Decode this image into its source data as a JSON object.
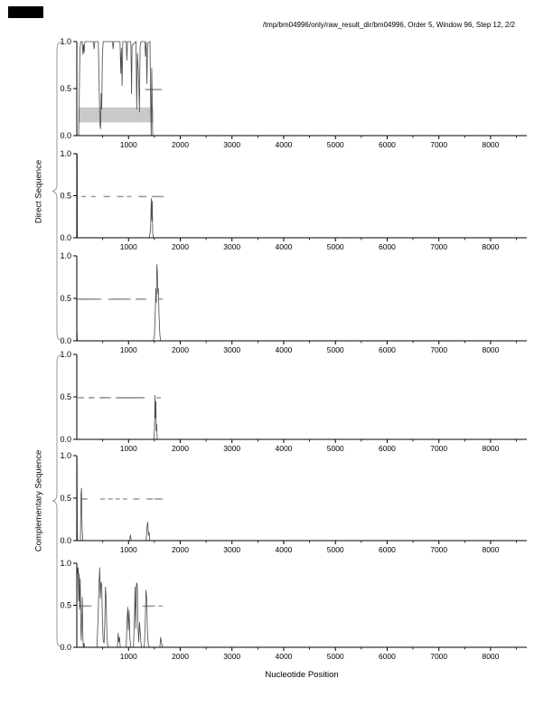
{
  "title": "/tmp/bm04996/only/raw_result_dir/bm04996, Order 5, Window 96, Step 12, 2/2",
  "x_axis_label": "Nucleotide Position",
  "group_labels": {
    "direct": "Direct Sequence",
    "complementary": "Complementary Sequence"
  },
  "colors": {
    "background": "#ffffff",
    "corner_mark": "#000000",
    "axis": "#000000",
    "curve": "#4a4a4a",
    "dash_marks": "#979797",
    "shaded_box": "#c9c9c9",
    "brace": "#9a9a9a",
    "tick_text": "#000000"
  },
  "chart_data": {
    "type": "line",
    "title": "/tmp/bm04996/only/raw_result_dir/bm04996, Order 5, Window 96, Step 12, 2/2",
    "xlabel": "Nucleotide Position",
    "x_domain": [
      0,
      8700
    ],
    "ylim": [
      0.0,
      1.0
    ],
    "grid": false,
    "x_ticks_major": [
      1000,
      2000,
      3000,
      4000,
      5000,
      6000,
      7000,
      8000
    ],
    "x_tick_labels": [
      "1000",
      "2000",
      "3000",
      "4000",
      "5000",
      "6000",
      "7000",
      "8000"
    ],
    "x_ticks_minor": [
      500,
      1500,
      2500,
      3500,
      4500,
      5500,
      6500,
      7500,
      8500
    ],
    "y_ticks": [
      {
        "v": 1.0,
        "label": "1.0"
      },
      {
        "v": 0.5,
        "label": "0.5"
      },
      {
        "v": 0.0,
        "label": "0.0"
      }
    ],
    "groups": [
      {
        "label": "Direct Sequence",
        "panels": [
          0,
          1,
          2
        ]
      },
      {
        "label": "Complementary Sequence",
        "panels": [
          3,
          4,
          5
        ]
      }
    ],
    "panels": [
      {
        "name": "direct-frame-1",
        "shaded_region": {
          "x0": 30,
          "x1": 1480,
          "y0": 0.14,
          "y1": 0.3
        },
        "marks_y": 0.49,
        "marks_x": [
          1365,
          1405,
          1450,
          1500,
          1555,
          1605
        ],
        "curve": [
          [
            0,
            0
          ],
          [
            35,
            0
          ],
          [
            45,
            0.3
          ],
          [
            60,
            0.9
          ],
          [
            75,
            1
          ],
          [
            105,
            1
          ],
          [
            118,
            0.86
          ],
          [
            130,
            0.97
          ],
          [
            142,
            0.88
          ],
          [
            155,
            1
          ],
          [
            320,
            1
          ],
          [
            335,
            0.92
          ],
          [
            350,
            1
          ],
          [
            415,
            1
          ],
          [
            430,
            0.6
          ],
          [
            445,
            0.12
          ],
          [
            460,
            0.07
          ],
          [
            472,
            0.45
          ],
          [
            482,
            0.28
          ],
          [
            495,
            0.85
          ],
          [
            510,
            1
          ],
          [
            690,
            1
          ],
          [
            702,
            0.92
          ],
          [
            715,
            1
          ],
          [
            835,
            1
          ],
          [
            850,
            0.66
          ],
          [
            862,
            0.93
          ],
          [
            875,
            0.53
          ],
          [
            890,
            1
          ],
          [
            955,
            1
          ],
          [
            968,
            0.8
          ],
          [
            980,
            1
          ],
          [
            1045,
            1
          ],
          [
            1058,
            0.44
          ],
          [
            1070,
            0.96
          ],
          [
            1145,
            1
          ],
          [
            1158,
            0.28
          ],
          [
            1172,
            0.88
          ],
          [
            1195,
            0.62
          ],
          [
            1210,
            0.25
          ],
          [
            1225,
            0.95
          ],
          [
            1240,
            1
          ],
          [
            1315,
            1
          ],
          [
            1328,
            0.84
          ],
          [
            1342,
            1
          ],
          [
            1355,
            0.55
          ],
          [
            1370,
            0.98
          ],
          [
            1415,
            1
          ],
          [
            1428,
            0.35
          ],
          [
            1438,
            0
          ],
          [
            1448,
            0.72
          ],
          [
            1458,
            0.35
          ],
          [
            1468,
            0
          ],
          [
            8700,
            0
          ]
        ]
      },
      {
        "name": "direct-frame-2",
        "marks_y": 0.49,
        "marks_x": [
          130,
          320,
          560,
          600,
          820,
          860,
          1010,
          1230,
          1270,
          1310,
          1490,
          1540,
          1590,
          1640
        ],
        "curve": [
          [
            0,
            0
          ],
          [
            3,
            1
          ],
          [
            7,
            1
          ],
          [
            10,
            0
          ],
          [
            1400,
            0
          ],
          [
            1425,
            0.08
          ],
          [
            1440,
            0.47
          ],
          [
            1450,
            0.2
          ],
          [
            1458,
            0.44
          ],
          [
            1468,
            0.06
          ],
          [
            1480,
            0
          ],
          [
            8700,
            0
          ]
        ]
      },
      {
        "name": "direct-frame-3",
        "marks_y": 0.49,
        "marks_x": [
          30,
          60,
          90,
          120,
          150,
          180,
          220,
          260,
          300,
          340,
          380,
          430,
          650,
          690,
          730,
          770,
          810,
          850,
          900,
          950,
          1000,
          1180,
          1220,
          1260,
          1300,
          1620
        ],
        "curve": [
          [
            0,
            0
          ],
          [
            4,
            0.12
          ],
          [
            8,
            0
          ],
          [
            1480,
            0
          ],
          [
            1500,
            0.06
          ],
          [
            1515,
            0.3
          ],
          [
            1528,
            0.62
          ],
          [
            1538,
            0.45
          ],
          [
            1548,
            0.9
          ],
          [
            1558,
            0.8
          ],
          [
            1568,
            0.55
          ],
          [
            1578,
            0.62
          ],
          [
            1590,
            0.3
          ],
          [
            1605,
            0.08
          ],
          [
            1620,
            0
          ],
          [
            8700,
            0
          ]
        ]
      },
      {
        "name": "complementary-frame-1",
        "marks_y": 0.49,
        "marks_x": [
          60,
          100,
          270,
          300,
          480,
          510,
          540,
          570,
          620,
          790,
          820,
          850,
          880,
          910,
          940,
          970,
          1000,
          1030,
          1060,
          1090,
          1120,
          1150,
          1180,
          1210,
          1240,
          1270,
          1580
        ],
        "curve": [
          [
            0,
            0
          ],
          [
            1490,
            0
          ],
          [
            1502,
            0.12
          ],
          [
            1512,
            0.52
          ],
          [
            1520,
            0.25
          ],
          [
            1528,
            0.45
          ],
          [
            1536,
            0.1
          ],
          [
            1545,
            0.18
          ],
          [
            1555,
            0
          ],
          [
            8700,
            0
          ]
        ]
      },
      {
        "name": "complementary-frame-2",
        "marks_y": 0.49,
        "marks_x": [
          120,
          160,
          500,
          650,
          790,
          930,
          1130,
          1170,
          1390,
          1430,
          1540,
          1580,
          1620
        ],
        "curve": [
          [
            0,
            0
          ],
          [
            4,
            1
          ],
          [
            8,
            0.1
          ],
          [
            12,
            0
          ],
          [
            70,
            0
          ],
          [
            82,
            0.55
          ],
          [
            90,
            0.62
          ],
          [
            98,
            0.3
          ],
          [
            105,
            0.12
          ],
          [
            115,
            0
          ],
          [
            1020,
            0
          ],
          [
            1038,
            0.07
          ],
          [
            1052,
            0
          ],
          [
            1340,
            0
          ],
          [
            1358,
            0.16
          ],
          [
            1372,
            0.22
          ],
          [
            1385,
            0.06
          ],
          [
            1398,
            0.1
          ],
          [
            1412,
            0
          ],
          [
            8700,
            0
          ]
        ]
      },
      {
        "name": "complementary-frame-3",
        "marks_y": 0.49,
        "marks_x": [
          80,
          120,
          160,
          200,
          240,
          1310,
          1350,
          1390,
          1430,
          1470,
          1620
        ],
        "curve": [
          [
            0,
            0.55
          ],
          [
            6,
            0.95
          ],
          [
            16,
            0.88
          ],
          [
            26,
            0.95
          ],
          [
            36,
            0.55
          ],
          [
            46,
            0.88
          ],
          [
            56,
            0.45
          ],
          [
            66,
            0.82
          ],
          [
            76,
            0.28
          ],
          [
            86,
            0.08
          ],
          [
            96,
            0.32
          ],
          [
            106,
            0.6
          ],
          [
            116,
            0.18
          ],
          [
            126,
            0
          ],
          [
            140,
            0.05
          ],
          [
            155,
            0
          ],
          [
            390,
            0
          ],
          [
            410,
            0.35
          ],
          [
            428,
            0.72
          ],
          [
            442,
            0.95
          ],
          [
            456,
            0.58
          ],
          [
            468,
            0.78
          ],
          [
            482,
            0.74
          ],
          [
            496,
            0.3
          ],
          [
            510,
            0.08
          ],
          [
            528,
            0.05
          ],
          [
            542,
            0.3
          ],
          [
            554,
            0.72
          ],
          [
            568,
            0.58
          ],
          [
            580,
            0.18
          ],
          [
            594,
            0.04
          ],
          [
            615,
            0
          ],
          [
            785,
            0
          ],
          [
            800,
            0.17
          ],
          [
            812,
            0.06
          ],
          [
            826,
            0.12
          ],
          [
            840,
            0
          ],
          [
            955,
            0
          ],
          [
            972,
            0.32
          ],
          [
            985,
            0.48
          ],
          [
            998,
            0.2
          ],
          [
            1012,
            0.44
          ],
          [
            1028,
            0.1
          ],
          [
            1042,
            0
          ],
          [
            1095,
            0
          ],
          [
            1112,
            0.32
          ],
          [
            1126,
            0.72
          ],
          [
            1140,
            0.22
          ],
          [
            1154,
            0.77
          ],
          [
            1168,
            0.74
          ],
          [
            1182,
            0.28
          ],
          [
            1196,
            0.06
          ],
          [
            1212,
            0.3
          ],
          [
            1226,
            0.18
          ],
          [
            1242,
            0.04
          ],
          [
            1258,
            0
          ],
          [
            1305,
            0
          ],
          [
            1322,
            0.26
          ],
          [
            1336,
            0.68
          ],
          [
            1352,
            0.58
          ],
          [
            1366,
            0.18
          ],
          [
            1382,
            0.04
          ],
          [
            1400,
            0
          ],
          [
            1605,
            0
          ],
          [
            1622,
            0.12
          ],
          [
            1640,
            0.04
          ],
          [
            1660,
            0
          ],
          [
            8700,
            0
          ]
        ]
      }
    ]
  }
}
